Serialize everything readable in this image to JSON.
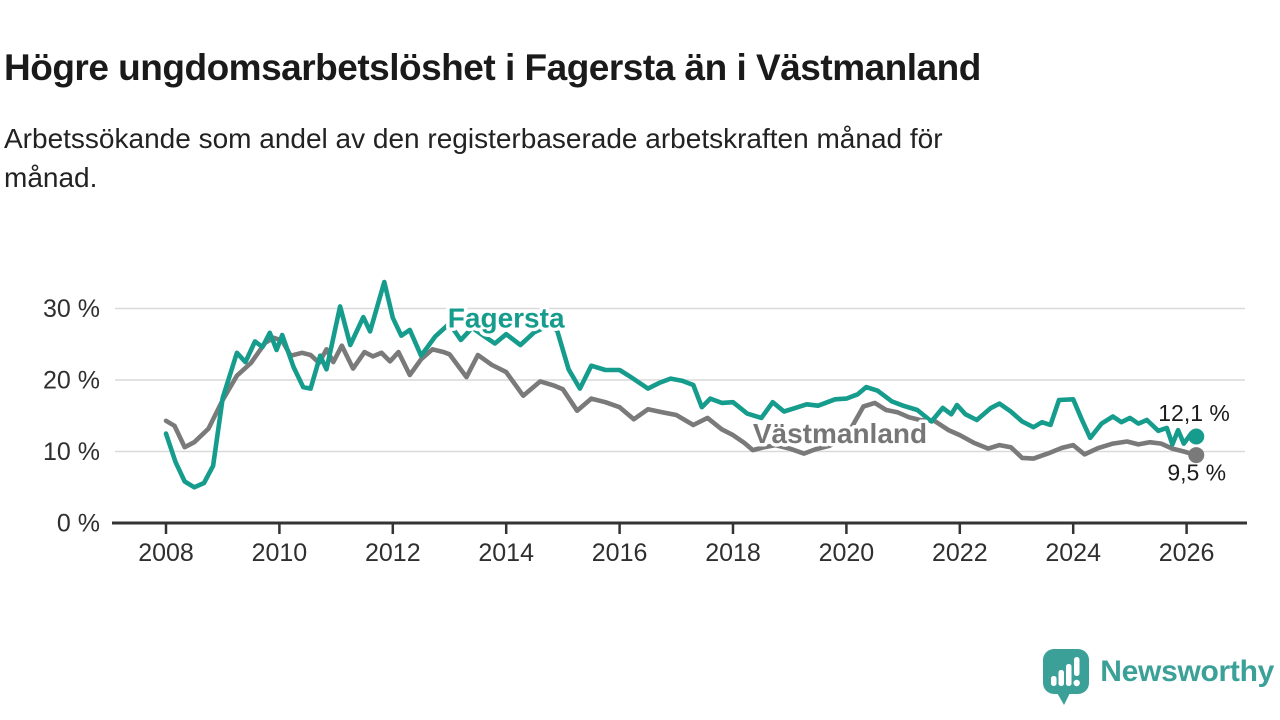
{
  "header": {
    "title": "Högre ungdomsarbetslöshet i Fagersta än i Västmanland",
    "subtitle_lines": [
      "Arbetssökande som andel av den registerbaserade arbetskraften månad för",
      "månad."
    ]
  },
  "branding": {
    "name": "Newsworthy",
    "logo_icon": "speech-bubble-with-bar-chart-and-exclamation",
    "brand_color": "#3ba198"
  },
  "chart_data": {
    "type": "line",
    "x_label": "",
    "y_label": "",
    "y_unit": "%",
    "xlim": [
      2007.1,
      2027.05
    ],
    "ylim": [
      0,
      37.5
    ],
    "grid": "horizontal",
    "style": {
      "grid_color": "#d9d9d9",
      "axis_color": "#333333",
      "tick_text_color": "#2f2f2f",
      "background": "#ffffff"
    },
    "y_ticks": [
      {
        "value": 0,
        "label": "0 %"
      },
      {
        "value": 10,
        "label": "10 %"
      },
      {
        "value": 20,
        "label": "20 %"
      },
      {
        "value": 30,
        "label": "30 %"
      }
    ],
    "x_ticks": [
      {
        "value": 2008,
        "label": "2008"
      },
      {
        "value": 2010,
        "label": "2010"
      },
      {
        "value": 2012,
        "label": "2012"
      },
      {
        "value": 2014,
        "label": "2014"
      },
      {
        "value": 2016,
        "label": "2016"
      },
      {
        "value": 2018,
        "label": "2018"
      },
      {
        "value": 2020,
        "label": "2020"
      },
      {
        "value": 2022,
        "label": "2022"
      },
      {
        "value": 2024,
        "label": "2024"
      },
      {
        "value": 2026,
        "label": "2026"
      }
    ],
    "series": [
      {
        "name": "Fagersta",
        "color": "#169c8c",
        "end_value": 12.1,
        "end_dot": true,
        "x": [
          2008.0,
          2008.17,
          2008.33,
          2008.5,
          2008.67,
          2008.83,
          2009.0,
          2009.25,
          2009.4,
          2009.57,
          2009.7,
          2009.83,
          2009.95,
          2010.05,
          2010.25,
          2010.42,
          2010.55,
          2010.72,
          2010.83,
          2011.07,
          2011.25,
          2011.48,
          2011.6,
          2011.85,
          2012.0,
          2012.15,
          2012.3,
          2012.5,
          2012.75,
          2013.0,
          2013.2,
          2013.4,
          2013.6,
          2013.8,
          2014.0,
          2014.25,
          2014.5,
          2014.75,
          2014.9,
          2015.1,
          2015.3,
          2015.5,
          2015.75,
          2016.0,
          2016.2,
          2016.5,
          2016.7,
          2016.9,
          2017.1,
          2017.3,
          2017.45,
          2017.6,
          2017.8,
          2018.0,
          2018.25,
          2018.5,
          2018.7,
          2018.9,
          2019.1,
          2019.3,
          2019.5,
          2019.8,
          2020.0,
          2020.2,
          2020.35,
          2020.55,
          2020.8,
          2021.0,
          2021.25,
          2021.5,
          2021.7,
          2021.85,
          2021.95,
          2022.1,
          2022.3,
          2022.55,
          2022.7,
          2022.9,
          2023.1,
          2023.3,
          2023.45,
          2023.6,
          2023.75,
          2024.0,
          2024.15,
          2024.3,
          2024.5,
          2024.7,
          2024.85,
          2025.0,
          2025.15,
          2025.3,
          2025.5,
          2025.65,
          2025.75,
          2025.85,
          2025.95,
          2026.08,
          2026.17
        ],
        "values": [
          12.5,
          8.5,
          5.8,
          5.0,
          5.6,
          8.0,
          17.5,
          23.8,
          22.5,
          25.4,
          24.6,
          26.6,
          24.2,
          26.3,
          21.8,
          19.0,
          18.8,
          23.4,
          21.5,
          30.3,
          24.9,
          28.8,
          26.8,
          33.7,
          28.7,
          26.2,
          27.0,
          23.4,
          26.1,
          27.9,
          25.6,
          27.3,
          26.2,
          25.1,
          26.4,
          24.9,
          26.7,
          27.6,
          26.9,
          21.5,
          18.8,
          22.0,
          21.4,
          21.4,
          20.4,
          18.8,
          19.6,
          20.2,
          19.9,
          19.3,
          16.2,
          17.4,
          16.8,
          16.9,
          15.3,
          14.7,
          16.9,
          15.6,
          16.1,
          16.6,
          16.4,
          17.3,
          17.4,
          18.0,
          19.0,
          18.5,
          17.0,
          16.4,
          15.8,
          14.2,
          16.1,
          15.2,
          16.5,
          15.2,
          14.4,
          16.1,
          16.7,
          15.6,
          14.2,
          13.4,
          14.1,
          13.7,
          17.2,
          17.3,
          14.5,
          11.9,
          13.9,
          14.9,
          14.1,
          14.7,
          13.9,
          14.4,
          12.9,
          13.3,
          11.0,
          13.0,
          11.1,
          12.5,
          12.1
        ]
      },
      {
        "name": "Västmanland",
        "color": "#7a7a7a",
        "end_value": 9.5,
        "end_dot": true,
        "x": [
          2008.0,
          2008.15,
          2008.33,
          2008.5,
          2008.75,
          2009.0,
          2009.25,
          2009.5,
          2009.75,
          2009.9,
          2010.05,
          2010.2,
          2010.4,
          2010.55,
          2010.7,
          2010.83,
          2010.95,
          2011.1,
          2011.3,
          2011.5,
          2011.65,
          2011.8,
          2011.95,
          2012.1,
          2012.3,
          2012.5,
          2012.7,
          2012.9,
          2013.0,
          2013.3,
          2013.5,
          2013.75,
          2014.0,
          2014.3,
          2014.6,
          2014.85,
          2015.0,
          2015.25,
          2015.5,
          2015.75,
          2016.0,
          2016.25,
          2016.5,
          2016.75,
          2017.0,
          2017.3,
          2017.55,
          2017.8,
          2018.0,
          2018.2,
          2018.35,
          2018.55,
          2018.75,
          2019.0,
          2019.25,
          2019.45,
          2019.7,
          2019.9,
          2020.1,
          2020.3,
          2020.5,
          2020.7,
          2020.9,
          2021.1,
          2021.3,
          2021.55,
          2021.8,
          2022.0,
          2022.25,
          2022.5,
          2022.7,
          2022.9,
          2023.1,
          2023.3,
          2023.55,
          2023.8,
          2024.0,
          2024.2,
          2024.45,
          2024.7,
          2024.95,
          2025.15,
          2025.35,
          2025.55,
          2025.75,
          2025.95,
          2026.17
        ],
        "values": [
          14.3,
          13.6,
          10.6,
          11.3,
          13.2,
          17.2,
          20.6,
          22.4,
          25.2,
          25.9,
          25.5,
          23.4,
          23.8,
          23.5,
          22.4,
          24.3,
          22.5,
          24.8,
          21.6,
          23.9,
          23.3,
          23.8,
          22.6,
          23.9,
          20.7,
          22.9,
          24.3,
          23.9,
          23.6,
          20.4,
          23.5,
          22.1,
          21.1,
          17.8,
          19.8,
          19.2,
          18.7,
          15.7,
          17.4,
          16.9,
          16.2,
          14.5,
          15.9,
          15.5,
          15.1,
          13.7,
          14.7,
          13.1,
          12.3,
          11.2,
          10.2,
          10.6,
          10.9,
          10.4,
          9.7,
          10.3,
          10.8,
          11.6,
          13.5,
          16.3,
          16.8,
          15.8,
          15.5,
          14.8,
          14.4,
          14.3,
          13.0,
          12.3,
          11.2,
          10.4,
          10.9,
          10.6,
          9.1,
          9.0,
          9.7,
          10.5,
          10.9,
          9.6,
          10.5,
          11.1,
          11.4,
          11.0,
          11.3,
          11.1,
          10.4,
          10.0,
          9.5
        ]
      }
    ],
    "annotations": [
      {
        "name": "series-label-fagersta",
        "text": "Fagersta",
        "x": 2012.97,
        "y": 28.75,
        "color": "#169c8c",
        "bold": true,
        "size": 28,
        "halo": true
      },
      {
        "name": "series-label-vastmanland",
        "text": "Västmanland",
        "x": 2018.35,
        "y": 12.6,
        "color": "#767676",
        "bold": true,
        "size": 28,
        "halo": true
      },
      {
        "name": "value-label-fagersta",
        "text": "12,1 %",
        "x": 2025.5,
        "y": 15.4,
        "color": "#1c1c1c",
        "bold": false,
        "size": 23,
        "halo": false
      },
      {
        "name": "value-label-vastmanland",
        "text": "9,5 %",
        "x": 2025.66,
        "y": 7.1,
        "color": "#1c1c1c",
        "bold": false,
        "size": 23,
        "halo": false
      }
    ]
  }
}
